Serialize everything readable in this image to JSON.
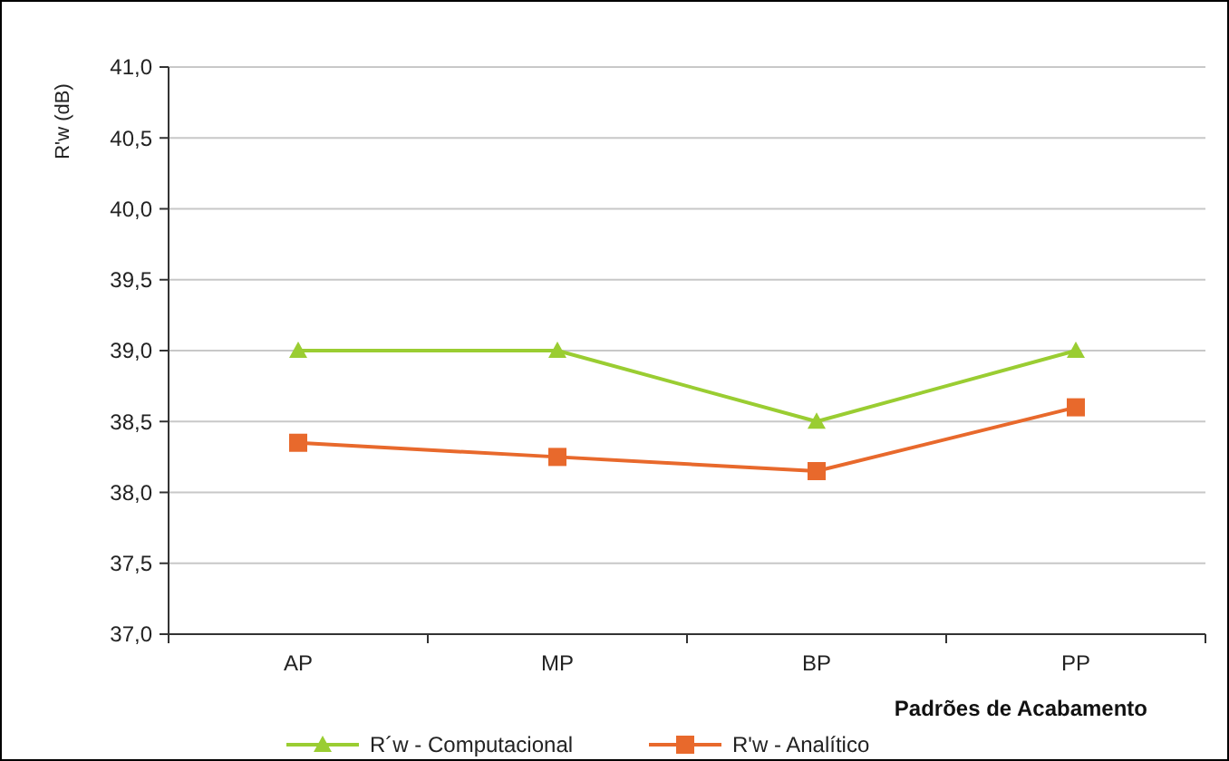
{
  "chart_data": {
    "type": "line",
    "xlabel": "Padrões de Acabamento",
    "ylabel": "R'w (dB)",
    "categories": [
      "AP",
      "MP",
      "BP",
      "PP"
    ],
    "series": [
      {
        "name": "R´w - Computacional",
        "color": "#9acd32",
        "values": [
          39,
          39,
          38.5,
          39
        ],
        "marker": "triangle"
      },
      {
        "name": "R'w - Analítico",
        "color": "#e8692c",
        "values": [
          38.35,
          38.25,
          38.15,
          38.6
        ],
        "marker": "square"
      }
    ],
    "ylim": [
      37,
      41
    ],
    "yticks": [
      {
        "value": 37,
        "label": "37,0"
      },
      {
        "value": 37.5,
        "label": "37,5"
      },
      {
        "value": 38,
        "label": "38,0"
      },
      {
        "value": 38.5,
        "label": "38,5"
      },
      {
        "value": 39,
        "label": "39,0"
      },
      {
        "value": 39.5,
        "label": "39,5"
      },
      {
        "value": 40,
        "label": "40,0"
      },
      {
        "value": 40.5,
        "label": "40,5"
      },
      {
        "value": 41,
        "label": "41,0"
      }
    ],
    "grid": "y",
    "legend": "bottom"
  }
}
